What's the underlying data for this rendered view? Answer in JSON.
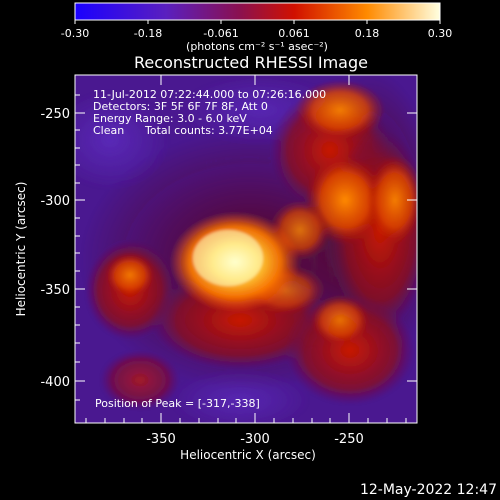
{
  "colorbar": {
    "ticks": [
      "-0.30",
      "-0.18",
      "-0.061",
      "0.061",
      "0.18",
      "0.30"
    ],
    "min": -0.3,
    "max": 0.3,
    "units_label": "(photons cm⁻² s⁻¹ asec⁻²)"
  },
  "chart_data": {
    "type": "heatmap",
    "title": "Reconstructed RHESSI Image",
    "xlabel": "Heliocentric X (arcsec)",
    "ylabel": "Heliocentric Y (arcsec)",
    "xlim": [
      -395,
      -285
    ],
    "ylim": [
      -420,
      -225
    ],
    "x_ticks": [
      "-350",
      "-300",
      "-250"
    ],
    "x_tick_values": [
      -350,
      -300,
      -250
    ],
    "y_ticks": [
      "-250",
      "-300",
      "-350",
      "-400"
    ],
    "y_tick_values": [
      -250,
      -300,
      -350,
      -400
    ],
    "annotations": [
      "11-Jul-2012 07:22:44.000 to 07:26:16.000",
      "Detectors: 3F 5F 6F 7F 8F, Att 0",
      "Energy Range: 3.0 - 6.0 keV",
      "Clean",
      "Total counts: 3.77E+04",
      "Position of Peak = [-317,-338]"
    ],
    "peak": {
      "x": -317,
      "y": -338
    },
    "colormap": "blue-purple-red-yellow-white",
    "colors": {
      "low": "#1a00ff",
      "mid_low": "#6a2aa0",
      "mid": "#b0002a",
      "mid_high": "#ff6a00",
      "high": "#ffffb0"
    }
  },
  "footer": {
    "date": "12-May-2022 12:47"
  }
}
